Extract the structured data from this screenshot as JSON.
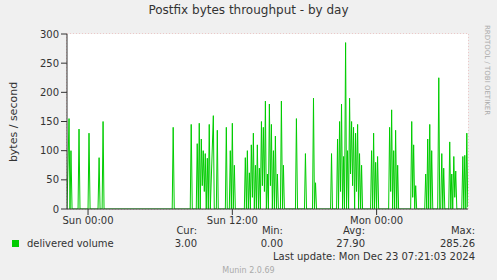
{
  "chart_data": {
    "type": "line",
    "title": "Postfix bytes throughput - by day",
    "y_label": "bytes / second",
    "side_text": "RRDTOOL / TOBI OETIKER",
    "x": [
      -1.75,
      -1.58,
      -1.5,
      -1.42,
      -1.33,
      -0.83,
      -0.75,
      -0.67,
      0,
      0.08,
      0.17,
      0.83,
      0.92,
      1,
      1.17,
      1.25,
      1.33,
      7,
      7.08,
      7.17,
      8.5,
      8.58,
      8.67,
      9,
      9.08,
      9.17,
      9.25,
      9.33,
      9.42,
      9.5,
      9.58,
      9.67,
      9.75,
      9.83,
      9.92,
      10,
      10.08,
      10.17,
      10.42,
      10.5,
      10.67,
      10.75,
      10.83,
      11.42,
      11.5,
      11.58,
      11.75,
      11.83,
      11.92,
      12,
      12.08,
      12.17,
      12.25,
      13,
      13.08,
      13.17,
      13.25,
      13.33,
      13.42,
      13.5,
      13.58,
      13.67,
      13.75,
      13.83,
      13.92,
      14,
      14.08,
      14.17,
      14.25,
      14.33,
      14.42,
      14.5,
      14.58,
      14.67,
      14.75,
      14.83,
      14.92,
      15,
      15.08,
      15.17,
      15.25,
      15.33,
      15.42,
      15.5,
      15.58,
      15.67,
      15.75,
      15.83,
      16,
      16.08,
      16.17,
      16.25,
      16.33,
      17.25,
      17.33,
      17.42,
      18,
      18.08,
      18.17,
      18.67,
      18.75,
      18.83,
      18.92,
      19,
      20.17,
      20.25,
      20.33,
      20.67,
      20.75,
      20.83,
      20.92,
      21,
      21.08,
      21.17,
      21.25,
      21.33,
      21.42,
      21.5,
      21.58,
      21.67,
      21.75,
      21.83,
      21.92,
      22,
      22.08,
      22.17,
      22.25,
      22.33,
      22.42,
      22.5,
      22.58,
      22.67,
      22.75,
      22.83,
      23.5,
      23.58,
      23.67,
      23.75,
      23.83,
      23.92,
      24,
      24.08,
      24.17,
      25,
      25.08,
      25.17,
      25.25,
      25.33,
      25.42,
      25.5,
      25.58,
      25.67,
      25.75,
      25.83,
      26.83,
      26.92,
      27,
      27.08,
      27.17,
      27.25,
      27.33,
      28,
      28.08,
      28.17,
      28.25,
      28.33,
      28.42,
      28.5,
      28.58,
      28.67,
      29.08,
      29.17,
      29.25,
      29.33,
      29.42,
      29.5,
      29.58,
      29.67,
      30,
      30.08,
      30.17,
      30.25,
      30.33,
      30.42,
      30.5,
      30.58,
      30.67,
      31.08,
      31.17,
      31.25,
      31.33,
      31.42,
      31.5,
      31.58
    ],
    "series": [
      {
        "name": "delivered volume",
        "color": "#00cc00",
        "values": [
          0,
          155,
          0,
          100,
          0,
          0,
          137,
          0,
          0,
          130,
          0,
          0,
          88,
          0,
          0,
          150,
          0,
          0,
          140,
          0,
          0,
          145,
          0,
          0,
          112,
          0,
          147,
          0,
          120,
          40,
          100,
          30,
          95,
          0,
          87,
          0,
          145,
          0,
          160,
          0,
          0,
          135,
          0,
          0,
          140,
          0,
          0,
          100,
          0,
          147,
          0,
          75,
          0,
          0,
          88,
          0,
          100,
          0,
          62,
          0,
          110,
          20,
          130,
          0,
          75,
          0,
          110,
          0,
          70,
          0,
          150,
          40,
          140,
          30,
          185,
          0,
          60,
          0,
          180,
          40,
          145,
          0,
          100,
          0,
          125,
          0,
          60,
          0,
          0,
          185,
          0,
          75,
          0,
          0,
          155,
          0,
          0,
          95,
          0,
          0,
          190,
          0,
          45,
          0,
          0,
          95,
          0,
          0,
          120,
          0,
          150,
          30,
          180,
          0,
          90,
          0,
          285.26,
          0,
          100,
          0,
          190,
          60,
          150,
          40,
          140,
          0,
          130,
          30,
          145,
          0,
          95,
          0,
          75,
          0,
          0,
          100,
          0,
          130,
          0,
          80,
          0,
          90,
          0,
          0,
          140,
          30,
          170,
          0,
          100,
          0,
          135,
          0,
          75,
          0,
          0,
          150,
          20,
          110,
          0,
          40,
          0,
          0,
          60,
          0,
          120,
          0,
          145,
          0,
          100,
          0,
          0,
          225,
          0,
          0,
          95,
          0,
          70,
          0,
          0,
          115,
          0,
          60,
          0,
          90,
          20,
          65,
          0,
          0,
          90,
          0,
          92,
          0,
          130,
          3
        ]
      }
    ],
    "xlim": [
      -1.75,
      31.6
    ],
    "xticks": [
      {
        "value": 0,
        "label": "Sun 00:00"
      },
      {
        "value": 12,
        "label": "Sun 12:00"
      },
      {
        "value": 24,
        "label": "Mon 00:00"
      }
    ],
    "ylim": [
      0,
      300
    ],
    "yticks": [
      0,
      50,
      100,
      150,
      200,
      250,
      300
    ],
    "grid": true,
    "legend": "bottom left",
    "stats": [
      {
        "name": "Cur:",
        "value": 3,
        "label": "3.00"
      },
      {
        "name": "Min:",
        "value": 0,
        "label": "0.00"
      },
      {
        "name": "Avg:",
        "value": 27.9,
        "label": "27.90"
      },
      {
        "name": "Max:",
        "value": 285.26,
        "label": "285.26"
      }
    ],
    "last_update": "Last update: Mon Dec 23 07:21:03 2024",
    "footer": "Munin 2.0.69"
  }
}
